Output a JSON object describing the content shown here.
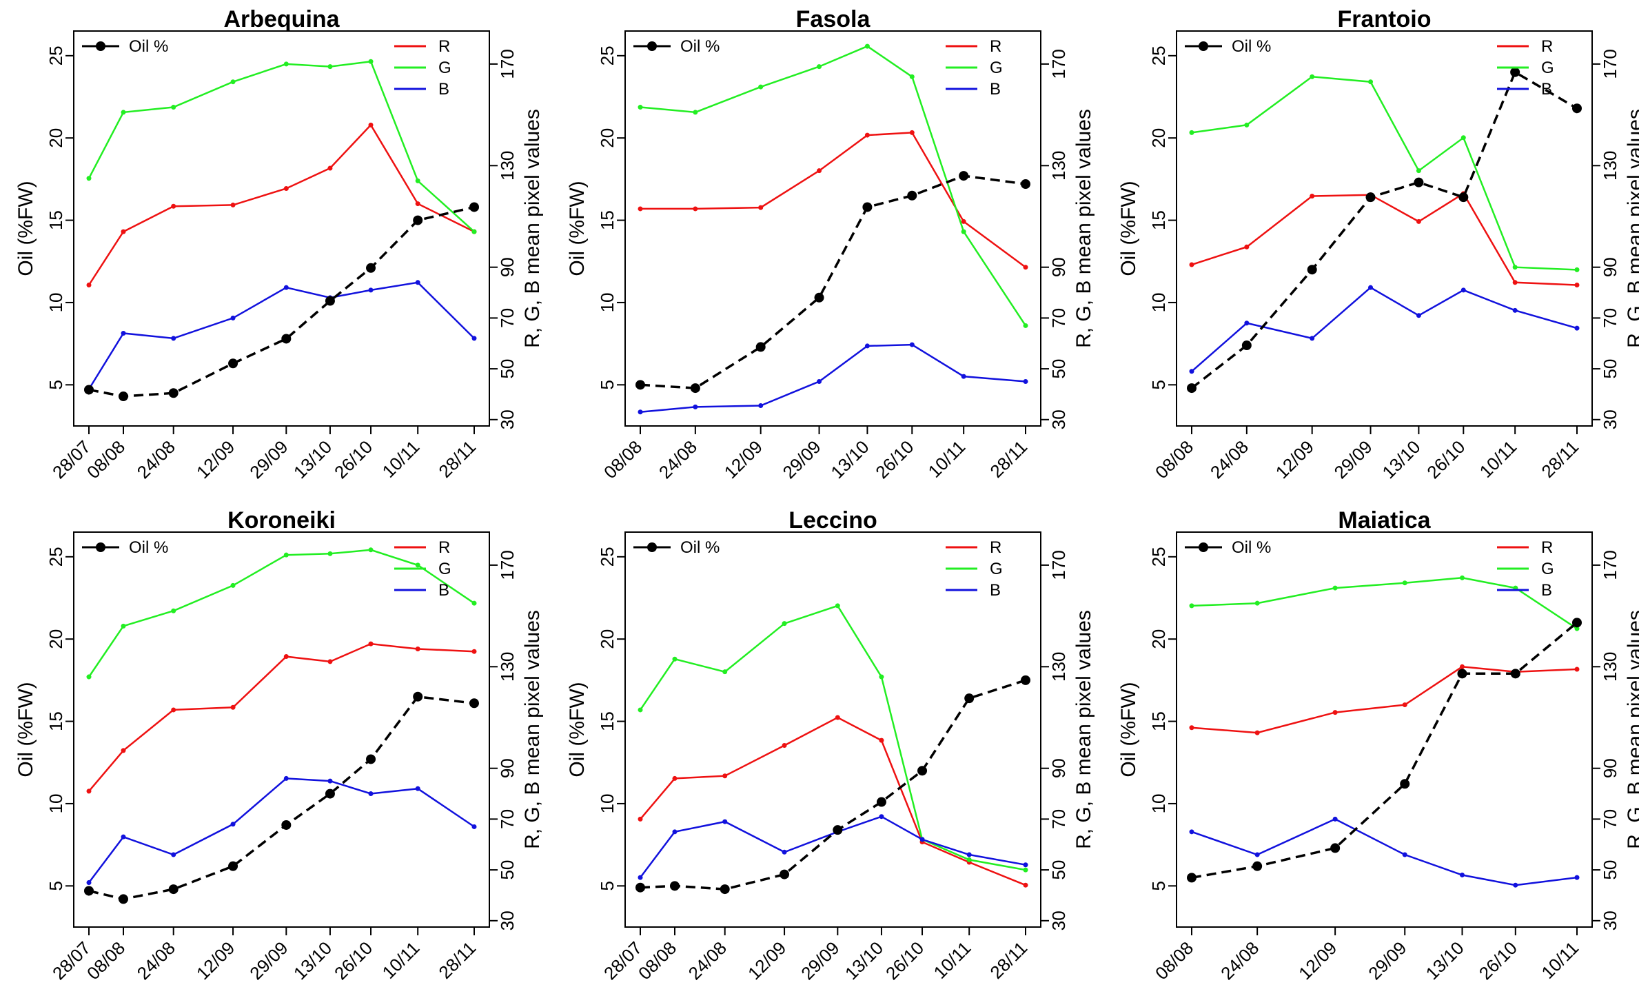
{
  "figure": {
    "ylabel_left": "Oil (%FW)",
    "ylabel_right": "R, G, B mean pixel values",
    "left_ylim": [
      2.5,
      26.5
    ],
    "left_ticks": [
      5,
      10,
      15,
      20,
      25
    ],
    "right_ylim": [
      27.5,
      183
    ],
    "right_ticks": [
      30,
      50,
      70,
      90,
      130,
      170
    ],
    "legend": {
      "oil": "Oil %",
      "r": "R",
      "g": "G",
      "b": "B"
    },
    "colors": {
      "oil": "#000000",
      "r": "#ee1111",
      "g": "#22ee22",
      "b": "#1111dd"
    }
  },
  "chart_data": [
    {
      "type": "line",
      "title": "Arbequina",
      "categories": [
        "28/07",
        "08/08",
        "24/08",
        "12/09",
        "29/09",
        "13/10",
        "26/10",
        "10/11",
        "28/11"
      ],
      "x": [
        0,
        11,
        27,
        46,
        63,
        77,
        90,
        105,
        123
      ],
      "series": [
        {
          "name": "Oil %",
          "axis": "left",
          "values": [
            4.7,
            4.3,
            4.5,
            6.3,
            7.8,
            10.1,
            12.1,
            15.0,
            15.8
          ]
        },
        {
          "name": "R",
          "axis": "right",
          "values": [
            83,
            104,
            114,
            114.5,
            121,
            129,
            146,
            115,
            104
          ]
        },
        {
          "name": "G",
          "axis": "right",
          "values": [
            125,
            151,
            153,
            163,
            170,
            169,
            171,
            124,
            104
          ]
        },
        {
          "name": "B",
          "axis": "right",
          "values": [
            42,
            64,
            62,
            70,
            82,
            78,
            81,
            84,
            62
          ]
        }
      ]
    },
    {
      "type": "line",
      "title": "Fasola",
      "categories": [
        "08/08",
        "24/08",
        "12/09",
        "29/09",
        "13/10",
        "26/10",
        "10/11",
        "28/11"
      ],
      "x": [
        0,
        16,
        35,
        52,
        66,
        79,
        94,
        112
      ],
      "series": [
        {
          "name": "Oil %",
          "axis": "left",
          "values": [
            5.0,
            4.8,
            7.3,
            10.3,
            15.8,
            16.5,
            17.7,
            17.2
          ]
        },
        {
          "name": "R",
          "axis": "right",
          "values": [
            113,
            113,
            113.5,
            128,
            142,
            143,
            108,
            90
          ]
        },
        {
          "name": "G",
          "axis": "right",
          "values": [
            153,
            151,
            161,
            169,
            177,
            165,
            104,
            67
          ]
        },
        {
          "name": "B",
          "axis": "right",
          "values": [
            33,
            35,
            35.5,
            45,
            59,
            59.5,
            47,
            45
          ]
        }
      ]
    },
    {
      "type": "line",
      "title": "Frantoio",
      "categories": [
        "08/08",
        "24/08",
        "12/09",
        "29/09",
        "13/10",
        "26/10",
        "10/11",
        "28/11"
      ],
      "x": [
        0,
        16,
        35,
        52,
        66,
        79,
        94,
        112
      ],
      "series": [
        {
          "name": "Oil %",
          "axis": "left",
          "values": [
            4.8,
            7.4,
            12.0,
            16.4,
            17.3,
            16.4,
            24.0,
            21.8
          ]
        },
        {
          "name": "R",
          "axis": "right",
          "values": [
            91,
            98,
            118,
            118.5,
            108,
            119,
            84,
            83
          ]
        },
        {
          "name": "G",
          "axis": "right",
          "values": [
            143,
            146,
            165,
            163,
            128,
            141,
            90,
            89
          ]
        },
        {
          "name": "B",
          "axis": "right",
          "values": [
            49,
            68,
            62,
            82,
            71,
            81,
            73,
            66
          ]
        }
      ]
    },
    {
      "type": "line",
      "title": "Koroneiki",
      "categories": [
        "28/07",
        "08/08",
        "24/08",
        "12/09",
        "29/09",
        "13/10",
        "26/10",
        "10/11",
        "28/11"
      ],
      "x": [
        0,
        11,
        27,
        46,
        63,
        77,
        90,
        105,
        123
      ],
      "series": [
        {
          "name": "Oil %",
          "axis": "left",
          "values": [
            4.7,
            4.2,
            4.8,
            6.2,
            8.7,
            10.6,
            12.7,
            16.5,
            16.1
          ]
        },
        {
          "name": "R",
          "axis": "right",
          "values": [
            81,
            97,
            113,
            114,
            134,
            132,
            139,
            137,
            136
          ]
        },
        {
          "name": "G",
          "axis": "right",
          "values": [
            126,
            146,
            152,
            162,
            174,
            174.5,
            176,
            170,
            155
          ]
        },
        {
          "name": "B",
          "axis": "right",
          "values": [
            45,
            63,
            56,
            68,
            86,
            85,
            80,
            82,
            67
          ]
        }
      ]
    },
    {
      "type": "line",
      "title": "Leccino",
      "categories": [
        "28/07",
        "08/08",
        "24/08",
        "12/09",
        "29/09",
        "13/10",
        "26/10",
        "10/11",
        "28/11"
      ],
      "x": [
        0,
        11,
        27,
        46,
        63,
        77,
        90,
        105,
        123
      ],
      "series": [
        {
          "name": "Oil %",
          "axis": "left",
          "values": [
            4.9,
            5.0,
            4.8,
            5.7,
            8.4,
            10.1,
            12.0,
            16.4,
            17.5
          ]
        },
        {
          "name": "R",
          "axis": "right",
          "values": [
            70,
            86,
            87,
            99,
            110,
            101,
            61,
            53,
            44
          ]
        },
        {
          "name": "G",
          "axis": "right",
          "values": [
            113,
            133,
            128,
            147,
            154,
            126,
            62,
            54,
            50
          ]
        },
        {
          "name": "B",
          "axis": "right",
          "values": [
            47,
            65,
            69,
            57,
            65,
            71,
            62,
            56,
            52
          ]
        }
      ]
    },
    {
      "type": "line",
      "title": "Maiatica",
      "categories": [
        "08/08",
        "24/08",
        "12/09",
        "29/09",
        "13/10",
        "26/10",
        "10/11"
      ],
      "x": [
        0,
        16,
        35,
        52,
        66,
        79,
        94
      ],
      "series": [
        {
          "name": "Oil %",
          "axis": "left",
          "values": [
            5.5,
            6.2,
            7.3,
            11.2,
            17.9,
            17.9,
            21.0
          ]
        },
        {
          "name": "R",
          "axis": "right",
          "values": [
            106,
            104,
            112,
            115,
            130,
            128,
            129
          ]
        },
        {
          "name": "G",
          "axis": "right",
          "values": [
            154,
            155,
            161,
            163,
            165,
            161,
            145
          ]
        },
        {
          "name": "B",
          "axis": "right",
          "values": [
            65,
            56,
            70,
            56,
            48,
            44,
            47
          ]
        }
      ]
    }
  ]
}
